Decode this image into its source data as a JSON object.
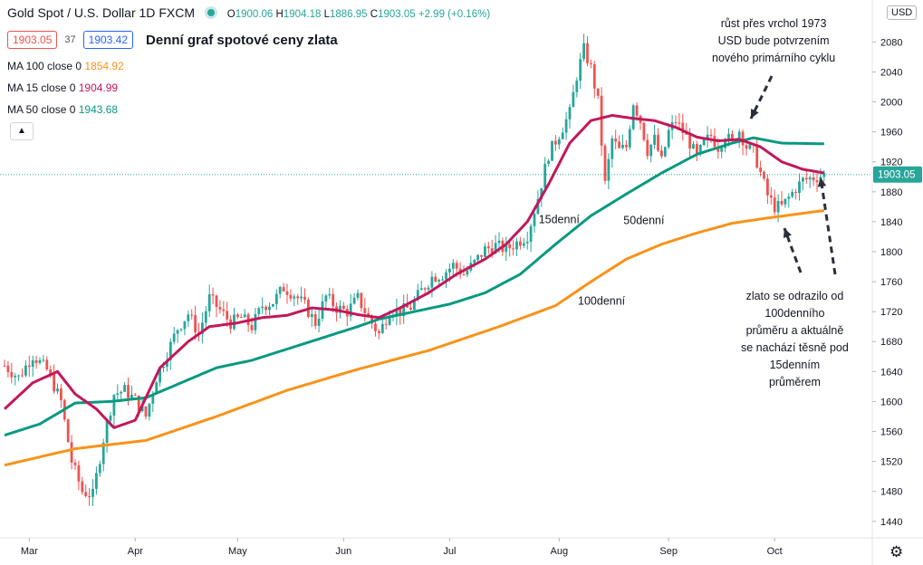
{
  "header": {
    "symbol": "Gold Spot / U.S. Dollar",
    "interval": "1D",
    "exchange": "FXCM",
    "ohlc": {
      "o_label": "O",
      "o": "1900.06",
      "h_label": "H",
      "h": "1904.18",
      "l_label": "L",
      "l": "1886.95",
      "c_label": "C",
      "c": "1903.05",
      "change": "+2.99 (+0.16%)"
    },
    "sell_price": "1903.05",
    "spread": "37",
    "buy_price": "1903.42",
    "subtitle": "Denní graf spotové ceny zlata"
  },
  "legend": [
    {
      "name": "MA 100 close 0",
      "value": "1854.92",
      "color": "#f7931a"
    },
    {
      "name": "MA 15 close 0",
      "value": "1904.99",
      "color": "#c2185b"
    },
    {
      "name": "MA 50 close 0",
      "value": "1943.68",
      "color": "#089981"
    }
  ],
  "currency_label": "USD",
  "annotations": {
    "top_right": [
      "růst přes vrchol 1973",
      "USD bude potvrzením",
      "nového primárního cyklu"
    ],
    "bottom_right": [
      "zlato se odrazilo od",
      "100denního",
      "průměru a aktuálně",
      "se nachází těsně pod",
      "15denním",
      "průměrem"
    ],
    "ma15_label": "15denní",
    "ma50_label": "50denní",
    "ma100_label": "100denní"
  },
  "chart_data": {
    "type": "candlestick",
    "title": "Denní graf spotové ceny zlata",
    "y_ticks": [
      1440,
      1480,
      1520,
      1560,
      1600,
      1640,
      1680,
      1720,
      1760,
      1800,
      1840,
      1880,
      1920,
      1960,
      2000,
      2040,
      2080
    ],
    "ylim": [
      1418,
      2136
    ],
    "x_ticks": [
      "Mar",
      "Apr",
      "May",
      "Jun",
      "Jul",
      "Aug",
      "Sep",
      "Oct"
    ],
    "last_price": 1903.05,
    "colors": {
      "up": "#26a69a",
      "down": "#ef5350",
      "ma15": "#c2185b",
      "ma50": "#089981",
      "ma100": "#f7931a"
    },
    "ma15_checkpoints": [
      [
        0,
        1590
      ],
      [
        8,
        1625
      ],
      [
        15,
        1640
      ],
      [
        20,
        1610
      ],
      [
        26,
        1590
      ],
      [
        31,
        1565
      ],
      [
        37,
        1575
      ],
      [
        44,
        1645
      ],
      [
        52,
        1680
      ],
      [
        58,
        1700
      ],
      [
        66,
        1705
      ],
      [
        73,
        1712
      ],
      [
        80,
        1715
      ],
      [
        87,
        1725
      ],
      [
        94,
        1722
      ],
      [
        100,
        1716
      ],
      [
        106,
        1712
      ],
      [
        112,
        1725
      ],
      [
        120,
        1745
      ],
      [
        128,
        1770
      ],
      [
        136,
        1790
      ],
      [
        142,
        1810
      ],
      [
        148,
        1840
      ],
      [
        154,
        1890
      ],
      [
        160,
        1945
      ],
      [
        166,
        1975
      ],
      [
        172,
        1982
      ],
      [
        178,
        1978
      ],
      [
        184,
        1975
      ],
      [
        190,
        1966
      ],
      [
        196,
        1953
      ],
      [
        202,
        1948
      ],
      [
        208,
        1950
      ],
      [
        214,
        1940
      ],
      [
        220,
        1920
      ],
      [
        226,
        1910
      ],
      [
        232,
        1905
      ]
    ],
    "ma50_checkpoints": [
      [
        0,
        1555
      ],
      [
        10,
        1570
      ],
      [
        20,
        1598
      ],
      [
        30,
        1600
      ],
      [
        40,
        1605
      ],
      [
        50,
        1625
      ],
      [
        60,
        1645
      ],
      [
        70,
        1655
      ],
      [
        80,
        1670
      ],
      [
        90,
        1685
      ],
      [
        100,
        1700
      ],
      [
        106,
        1710
      ],
      [
        116,
        1720
      ],
      [
        126,
        1730
      ],
      [
        136,
        1745
      ],
      [
        146,
        1770
      ],
      [
        156,
        1810
      ],
      [
        166,
        1848
      ],
      [
        176,
        1877
      ],
      [
        186,
        1905
      ],
      [
        196,
        1930
      ],
      [
        206,
        1945
      ],
      [
        212,
        1952
      ],
      [
        220,
        1945
      ],
      [
        232,
        1944
      ]
    ],
    "ma100_checkpoints": [
      [
        0,
        1515
      ],
      [
        20,
        1537
      ],
      [
        40,
        1548
      ],
      [
        60,
        1580
      ],
      [
        80,
        1615
      ],
      [
        100,
        1643
      ],
      [
        120,
        1668
      ],
      [
        140,
        1700
      ],
      [
        156,
        1728
      ],
      [
        166,
        1760
      ],
      [
        176,
        1790
      ],
      [
        186,
        1810
      ],
      [
        196,
        1825
      ],
      [
        206,
        1838
      ],
      [
        216,
        1845
      ],
      [
        232,
        1855
      ]
    ],
    "price_checkpoints": [
      [
        0,
        1648
      ],
      [
        4,
        1632
      ],
      [
        8,
        1662
      ],
      [
        12,
        1642
      ],
      [
        16,
        1600
      ],
      [
        19,
        1520
      ],
      [
        22,
        1480
      ],
      [
        25,
        1475
      ],
      [
        28,
        1550
      ],
      [
        31,
        1610
      ],
      [
        34,
        1615
      ],
      [
        37,
        1602
      ],
      [
        40,
        1580
      ],
      [
        43,
        1632
      ],
      [
        46,
        1664
      ],
      [
        49,
        1698
      ],
      [
        52,
        1717
      ],
      [
        55,
        1690
      ],
      [
        58,
        1738
      ],
      [
        61,
        1722
      ],
      [
        64,
        1705
      ],
      [
        67,
        1712
      ],
      [
        70,
        1700
      ],
      [
        73,
        1728
      ],
      [
        76,
        1733
      ],
      [
        79,
        1752
      ],
      [
        82,
        1743
      ],
      [
        85,
        1728
      ],
      [
        88,
        1705
      ],
      [
        91,
        1740
      ],
      [
        94,
        1725
      ],
      [
        97,
        1720
      ],
      [
        100,
        1738
      ],
      [
        103,
        1712
      ],
      [
        106,
        1690
      ],
      [
        109,
        1722
      ],
      [
        112,
        1720
      ],
      [
        115,
        1726
      ],
      [
        118,
        1748
      ],
      [
        121,
        1766
      ],
      [
        124,
        1770
      ],
      [
        127,
        1782
      ],
      [
        130,
        1770
      ],
      [
        133,
        1785
      ],
      [
        136,
        1803
      ],
      [
        139,
        1808
      ],
      [
        142,
        1803
      ],
      [
        145,
        1812
      ],
      [
        148,
        1822
      ],
      [
        151,
        1872
      ],
      [
        154,
        1930
      ],
      [
        157,
        1957
      ],
      [
        160,
        1985
      ],
      [
        162,
        2035
      ],
      [
        164,
        2070
      ],
      [
        166,
        2045
      ],
      [
        168,
        2000
      ],
      [
        170,
        1890
      ],
      [
        172,
        1950
      ],
      [
        174,
        1935
      ],
      [
        176,
        1940
      ],
      [
        178,
        2000
      ],
      [
        180,
        1975
      ],
      [
        182,
        1935
      ],
      [
        184,
        1950
      ],
      [
        186,
        1920
      ],
      [
        188,
        1960
      ],
      [
        190,
        1975
      ],
      [
        192,
        1960
      ],
      [
        194,
        1945
      ],
      [
        196,
        1925
      ],
      [
        198,
        1945
      ],
      [
        200,
        1955
      ],
      [
        202,
        1940
      ],
      [
        204,
        1955
      ],
      [
        206,
        1945
      ],
      [
        208,
        1962
      ],
      [
        210,
        1940
      ],
      [
        212,
        1935
      ],
      [
        214,
        1905
      ],
      [
        216,
        1875
      ],
      [
        218,
        1860
      ],
      [
        220,
        1860
      ],
      [
        222,
        1872
      ],
      [
        224,
        1885
      ],
      [
        226,
        1895
      ],
      [
        228,
        1898
      ],
      [
        230,
        1900
      ],
      [
        232,
        1903
      ]
    ],
    "ma_label_positions": "15denní near Jul–Aug, 50denní near Aug, 100denní near Jul–Aug",
    "grid": false
  }
}
